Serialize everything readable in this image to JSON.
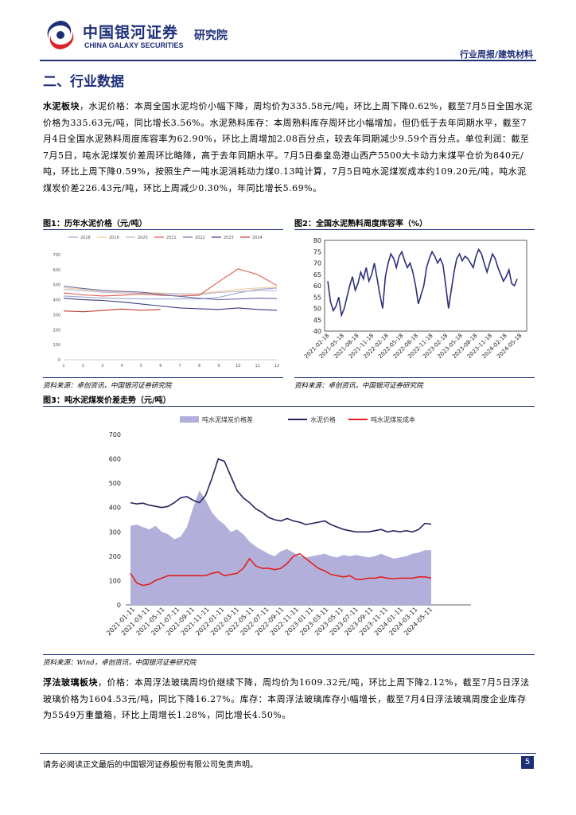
{
  "header": {
    "brand_cn": "中国银河证券",
    "brand_en": "CHINA GALAXY SECURITIES",
    "institute": "研究院",
    "report_type": "行业周报/建筑材料"
  },
  "section_title": "二、行业数据",
  "para1": {
    "lead": "水泥板块",
    "text": "，水泥价格：本周全国水泥均价小幅下降，周均价为335.58元/吨，环比上周下降0.62%，截至7月5日全国水泥价格为335.63元/吨，同比增长3.56%。水泥熟料库存：本周熟料库存周环比小幅增加，但仍低于去年同期水平，截至7月4日全国水泥熟料周度库容率为62.90%，环比上周增加2.08百分点，较去年同期减少9.59个百分点。单位利润：截至7月5日，吨水泥煤炭价差周环比略降，高于去年同期水平。7月5日秦皇岛港山西产5500大卡动力末煤平仓价为840元/吨，环比上周下降0.59%，按照生产一吨水泥消耗动力煤0.13吨计算，7月5日吨水泥煤炭成本约109.20元/吨，吨水泥煤炭价差226.43元/吨，环比上周减少0.30%，年同比增长5.69%。"
  },
  "fig1": {
    "title": "图1：历年水泥价格（元/吨）",
    "source": "资料来源：卓创资讯，中国银河证券研究院",
    "chart_data": {
      "type": "line",
      "series": [
        {
          "name": "2018",
          "color": "#9aa8d8",
          "values": [
            425,
            418,
            412,
            408,
            405,
            405,
            405,
            405,
            415,
            445,
            468,
            478
          ]
        },
        {
          "name": "2019",
          "color": "#f2c99a",
          "values": [
            480,
            468,
            458,
            452,
            450,
            445,
            440,
            440,
            455,
            468,
            478,
            483
          ]
        },
        {
          "name": "2020",
          "color": "#b8b8d0",
          "values": [
            470,
            460,
            450,
            445,
            443,
            440,
            438,
            435,
            448,
            455,
            460,
            462
          ]
        },
        {
          "name": "2021",
          "color": "#e05a4a",
          "values": [
            445,
            432,
            425,
            430,
            438,
            430,
            425,
            430,
            520,
            605,
            568,
            495
          ]
        },
        {
          "name": "2022",
          "color": "#6a6aaa",
          "values": [
            490,
            475,
            462,
            456,
            450,
            435,
            422,
            410,
            400,
            405,
            410,
            408
          ]
        },
        {
          "name": "2023",
          "color": "#3a3a80",
          "values": [
            410,
            400,
            395,
            385,
            372,
            358,
            345,
            340,
            335,
            345,
            335,
            330
          ]
        },
        {
          "name": "2024",
          "color": "#c03a30",
          "values": [
            325,
            320,
            328,
            338,
            330,
            335
          ]
        }
      ],
      "ylim": [
        0,
        700
      ],
      "yticks": [
        0,
        100,
        200,
        300,
        400,
        500,
        600,
        700
      ],
      "xticks": [
        1,
        2,
        3,
        4,
        5,
        6,
        7,
        8,
        9,
        10,
        11,
        12
      ]
    }
  },
  "fig2": {
    "title": "图2：全国水泥熟料周度库容率（%）",
    "source": "资料来源：卓创资讯，中国银河证券研究院",
    "chart_data": {
      "type": "line",
      "ylim": [
        40,
        80
      ],
      "yticks": [
        40,
        45,
        50,
        55,
        60,
        65,
        70,
        75,
        80
      ],
      "xticks": [
        "2021-02-18",
        "2021-05-18",
        "2021-08-18",
        "2021-11-18",
        "2022-02-18",
        "2022-05-18",
        "2022-08-18",
        "2022-11-18",
        "2023-02-18",
        "2023-05-18",
        "2023-08-18",
        "2023-11-18",
        "2024-02-18",
        "2024-05-18"
      ],
      "color": "#2e2e7a",
      "values": [
        62,
        53,
        49,
        51,
        55,
        47,
        50,
        55,
        60,
        64,
        58,
        61,
        66,
        63,
        68,
        62,
        65,
        70,
        63,
        56,
        50,
        64,
        70,
        74,
        72,
        68,
        73,
        75,
        71,
        68,
        70,
        66,
        60,
        52,
        56,
        60,
        68,
        72,
        75,
        73,
        70,
        72,
        69,
        60,
        50,
        58,
        66,
        72,
        74,
        71,
        73,
        72,
        70,
        68,
        73,
        76,
        74,
        70,
        66,
        70,
        74,
        72,
        68,
        65,
        62,
        64,
        67,
        61,
        60,
        63
      ]
    }
  },
  "fig3": {
    "title": "图3：吨水泥煤炭价差走势（元/吨）",
    "source": "资料来源：Wind，卓创资讯，中国银河证券研究院",
    "chart_data": {
      "type": "line",
      "series": [
        {
          "name": "吨水泥煤炭价格差",
          "kind": "area",
          "color": "#b2b0da",
          "values": [
            325,
            330,
            320,
            310,
            325,
            300,
            290,
            270,
            280,
            320,
            400,
            470,
            430,
            380,
            350,
            330,
            300,
            310,
            290,
            260,
            240,
            225,
            210,
            200,
            220,
            230,
            215,
            200,
            195,
            200,
            205,
            210,
            200,
            195,
            205,
            200,
            205,
            200,
            195,
            200,
            210,
            200,
            190,
            195,
            200,
            210,
            215,
            225,
            225
          ]
        },
        {
          "name": "水泥价格",
          "kind": "line",
          "color": "#24245e",
          "values": [
            420,
            415,
            418,
            410,
            405,
            400,
            405,
            420,
            440,
            445,
            430,
            420,
            450,
            520,
            600,
            590,
            530,
            470,
            440,
            420,
            395,
            380,
            360,
            350,
            345,
            355,
            345,
            340,
            330,
            335,
            340,
            345,
            330,
            320,
            310,
            305,
            300,
            300,
            300,
            305,
            310,
            300,
            305,
            300,
            305,
            300,
            310,
            335,
            332
          ]
        },
        {
          "name": "吨水泥煤炭成本",
          "kind": "line",
          "color": "#e02020",
          "values": [
            130,
            90,
            80,
            85,
            100,
            110,
            120,
            120,
            120,
            120,
            120,
            120,
            120,
            130,
            135,
            120,
            125,
            130,
            150,
            190,
            160,
            150,
            150,
            145,
            150,
            170,
            200,
            210,
            190,
            170,
            150,
            140,
            125,
            120,
            115,
            120,
            105,
            105,
            110,
            110,
            115,
            110,
            108,
            110,
            110,
            110,
            115,
            115,
            110
          ]
        }
      ],
      "ylim": [
        0,
        700
      ],
      "yticks": [
        0,
        100,
        200,
        300,
        400,
        500,
        600,
        700
      ],
      "xticks": [
        "2021-01-11",
        "2021-03-11",
        "2021-05-11",
        "2021-07-11",
        "2021-09-11",
        "2021-11-11",
        "2022-01-11",
        "2022-03-11",
        "2022-05-11",
        "2022-07-11",
        "2022-09-11",
        "2022-11-11",
        "2023-01-11",
        "2023-03-11",
        "2023-05-11",
        "2023-07-11",
        "2023-09-11",
        "2023-11-11",
        "2024-01-11",
        "2024-03-11",
        "2024-05-11"
      ]
    }
  },
  "para2": {
    "lead": "浮法玻璃板块",
    "text": "，价格：本周浮法玻璃周均价继续下降，周均价为1609.32元/吨，环比上周下降2.12%，截至7月5日浮法玻璃价格为1604.53元/吨，同比下降16.27%。库存：本周浮法玻璃库存小幅增长，截至7月4日浮法玻璃周度企业库存为5549万重量箱，环比上周增长1.28%，同比增长4.50%。"
  },
  "footer": {
    "disclaimer": "请务必阅读正文最后的中国银河证券股份有限公司免责声明。",
    "page": "5"
  }
}
